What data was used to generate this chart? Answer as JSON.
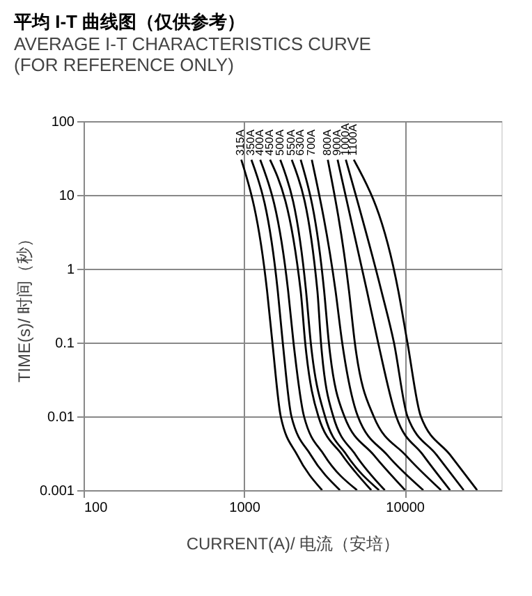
{
  "chart_data": {
    "type": "line",
    "title": "平均 I-T 曲线图（仅供参考）",
    "subtitle": "AVERAGE I-T CHARACTERISTICS CURVE\n(FOR REFERENCE ONLY)",
    "xlabel": "CURRENT(A)/ 电流（安培）",
    "ylabel": "TIME(s)/ 时间（秒）",
    "log": "xy",
    "xlim": [
      100,
      40000
    ],
    "ylim": [
      0.001,
      100
    ],
    "xticks": [
      100,
      1000,
      10000
    ],
    "yticks": [
      0.001,
      0.01,
      0.1,
      1,
      10,
      100
    ],
    "grid": true,
    "legend": false,
    "marker": "none",
    "line_style": "solid",
    "series": [
      {
        "name": "315A",
        "color": "#000000",
        "x": [
          960,
          1390,
          1500,
          1690,
          2140,
          3060
        ],
        "values": [
          30,
          0.5,
          0.1,
          0.01,
          0.003,
          0.001
        ]
      },
      {
        "name": "350A",
        "color": "#000000",
        "x": [
          1110,
          1620,
          1740,
          1970,
          2600,
          3950
        ],
        "values": [
          30,
          0.5,
          0.1,
          0.01,
          0.003,
          0.001
        ]
      },
      {
        "name": "400A",
        "color": "#000000",
        "x": [
          1260,
          1880,
          2030,
          2360,
          3150,
          5050
        ],
        "values": [
          30,
          0.5,
          0.1,
          0.01,
          0.003,
          0.001
        ]
      },
      {
        "name": "450A",
        "color": "#000000",
        "x": [
          1450,
          2250,
          2400,
          2900,
          4080,
          6190
        ],
        "values": [
          30,
          0.5,
          0.1,
          0.01,
          0.003,
          0.001
        ]
      },
      {
        "name": "500A",
        "color": "#000000",
        "x": [
          1680,
          2430,
          2600,
          3190,
          4350,
          6920
        ],
        "values": [
          30,
          0.5,
          0.1,
          0.01,
          0.003,
          0.001
        ]
      },
      {
        "name": "550A",
        "color": "#000000",
        "x": [
          1980,
          2860,
          3010,
          3590,
          4950,
          7520
        ],
        "values": [
          30,
          0.5,
          0.1,
          0.01,
          0.003,
          0.001
        ]
      },
      {
        "name": "630A",
        "color": "#000000",
        "x": [
          2250,
          3150,
          3370,
          4210,
          6410,
          10060
        ],
        "values": [
          30,
          0.5,
          0.1,
          0.01,
          0.003,
          0.001
        ]
      },
      {
        "name": "700A",
        "color": "#000000",
        "x": [
          2640,
          3710,
          4080,
          5110,
          7780,
          13060
        ],
        "values": [
          30,
          0.5,
          0.1,
          0.01,
          0.003,
          0.001
        ]
      },
      {
        "name": "800A",
        "color": "#000000",
        "x": [
          3320,
          4500,
          4890,
          6410,
          10100,
          16840
        ],
        "values": [
          30,
          0.5,
          0.1,
          0.01,
          0.003,
          0.001
        ]
      },
      {
        "name": "900A",
        "color": "#000000",
        "x": [
          3820,
          5820,
          6830,
          8850,
          13000,
          19160
        ],
        "values": [
          30,
          0.5,
          0.1,
          0.01,
          0.003,
          0.001
        ]
      },
      {
        "name": "1000A",
        "color": "#000000",
        "x": [
          4300,
          7160,
          8570,
          10400,
          15800,
          23300
        ],
        "values": [
          30,
          0.5,
          0.1,
          0.01,
          0.003,
          0.001
        ]
      },
      {
        "name": "1100A",
        "color": "#000000",
        "x": [
          4820,
          9130,
          10400,
          12600,
          19200,
          28250
        ],
        "values": [
          30,
          0.5,
          0.1,
          0.01,
          0.003,
          0.001
        ]
      }
    ]
  }
}
